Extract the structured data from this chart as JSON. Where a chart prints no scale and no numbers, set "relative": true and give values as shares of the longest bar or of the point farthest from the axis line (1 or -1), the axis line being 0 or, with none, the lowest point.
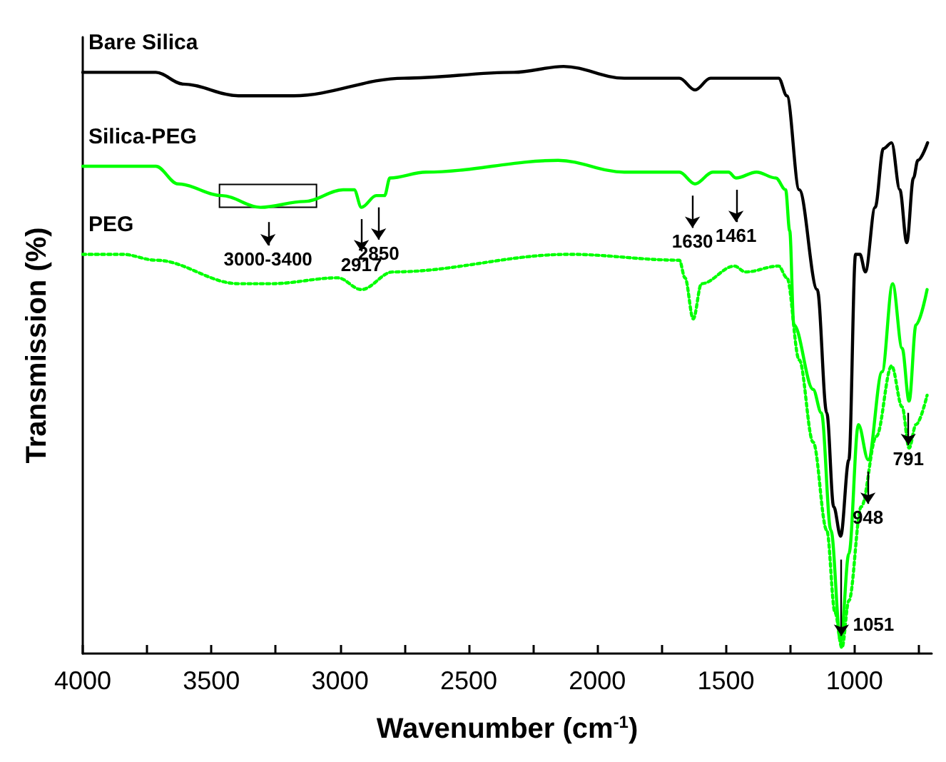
{
  "chart_data": {
    "type": "line",
    "relative": true,
    "xlabel": "Wavenumber (cm$^{-1}$)",
    "ylabel": "Transmission (%)",
    "xlim": [
      4000,
      700
    ],
    "xticks": [
      4000,
      {
        "value": 3750,
        "label": null
      },
      3500,
      {
        "value": 3250,
        "label": null
      },
      3000,
      {
        "value": 2750,
        "label": null
      },
      2500,
      {
        "value": 2250,
        "label": null
      },
      2000,
      {
        "value": 1750,
        "label": null
      },
      1500,
      {
        "value": 1250,
        "label": null
      },
      1000,
      {
        "value": 750,
        "label": null
      }
    ],
    "legend": false,
    "grid": false,
    "marker": "none",
    "line_style": "solid",
    "series": [
      {
        "name": "Bare Silica",
        "color": "#000000",
        "x": [
          4000,
          3716,
          3609,
          3395,
          3180,
          2752,
          2324,
          2131,
          1895,
          1681,
          1620,
          1560,
          1295,
          1263,
          1215,
          1145,
          1108,
          1081,
          1054,
          1022,
          996,
          979,
          958,
          920,
          888,
          856,
          824,
          797,
          771,
          754,
          716
        ],
        "values": [
          0.99,
          0.99,
          0.97,
          0.95,
          0.95,
          0.98,
          0.99,
          1.0,
          0.98,
          0.98,
          0.96,
          0.98,
          0.98,
          0.95,
          0.79,
          0.62,
          0.41,
          0.25,
          0.2,
          0.33,
          0.68,
          0.68,
          0.65,
          0.76,
          0.86,
          0.87,
          0.79,
          0.7,
          0.81,
          0.84,
          0.87
        ]
      },
      {
        "name": "Silica-PEG",
        "color": "#00ff00",
        "x": [
          4000,
          3716,
          3630,
          3459,
          3309,
          3138,
          2988,
          2945,
          2917,
          2859,
          2827,
          2806,
          2666,
          2152,
          1895,
          1681,
          1620,
          1551,
          1490,
          1461,
          1381,
          1306,
          1268,
          1252,
          1236,
          1161,
          1129,
          1092,
          1054,
          1022,
          985,
          947,
          893,
          852,
          815,
          788,
          761,
          718
        ],
        "values": [
          0.83,
          0.83,
          0.8,
          0.78,
          0.76,
          0.77,
          0.79,
          0.79,
          0.76,
          0.78,
          0.78,
          0.81,
          0.82,
          0.84,
          0.82,
          0.82,
          0.8,
          0.82,
          0.82,
          0.81,
          0.82,
          0.81,
          0.79,
          0.72,
          0.56,
          0.45,
          0.41,
          0.21,
          0.02,
          0.17,
          0.39,
          0.33,
          0.48,
          0.63,
          0.52,
          0.43,
          0.56,
          0.62
        ]
      },
      {
        "name": "PEG",
        "color": "#00ff00",
        "line_style": "dotted",
        "x": [
          4000,
          3845,
          3716,
          3395,
          3266,
          3009,
          2917,
          2795,
          2109,
          1681,
          1659,
          1627,
          1595,
          1467,
          1424,
          1295,
          1263,
          1215,
          1161,
          1108,
          1076,
          1049,
          1022,
          974,
          915,
          856,
          815,
          788,
          761,
          718
        ],
        "values": [
          0.68,
          0.68,
          0.67,
          0.63,
          0.63,
          0.64,
          0.62,
          0.65,
          0.68,
          0.67,
          0.64,
          0.57,
          0.63,
          0.66,
          0.65,
          0.66,
          0.64,
          0.5,
          0.36,
          0.21,
          0.07,
          0.01,
          0.09,
          0.25,
          0.37,
          0.49,
          0.42,
          0.35,
          0.39,
          0.44
        ]
      }
    ],
    "annotations": [
      {
        "text": "3000-3400",
        "x": 3280,
        "y": 0.77
      },
      {
        "text": "2917",
        "x": 2917,
        "y": 0.76
      },
      {
        "text": "2850",
        "x": 2850,
        "y": 0.78
      },
      {
        "text": "1630",
        "x": 1630,
        "y": 0.8
      },
      {
        "text": "1461",
        "x": 1461,
        "y": 0.81
      },
      {
        "text": "948",
        "x": 948,
        "y": 0.33
      },
      {
        "text": "791",
        "x": 791,
        "y": 0.43
      },
      {
        "text": "1051",
        "x": 1051,
        "y": 0.02
      }
    ]
  }
}
